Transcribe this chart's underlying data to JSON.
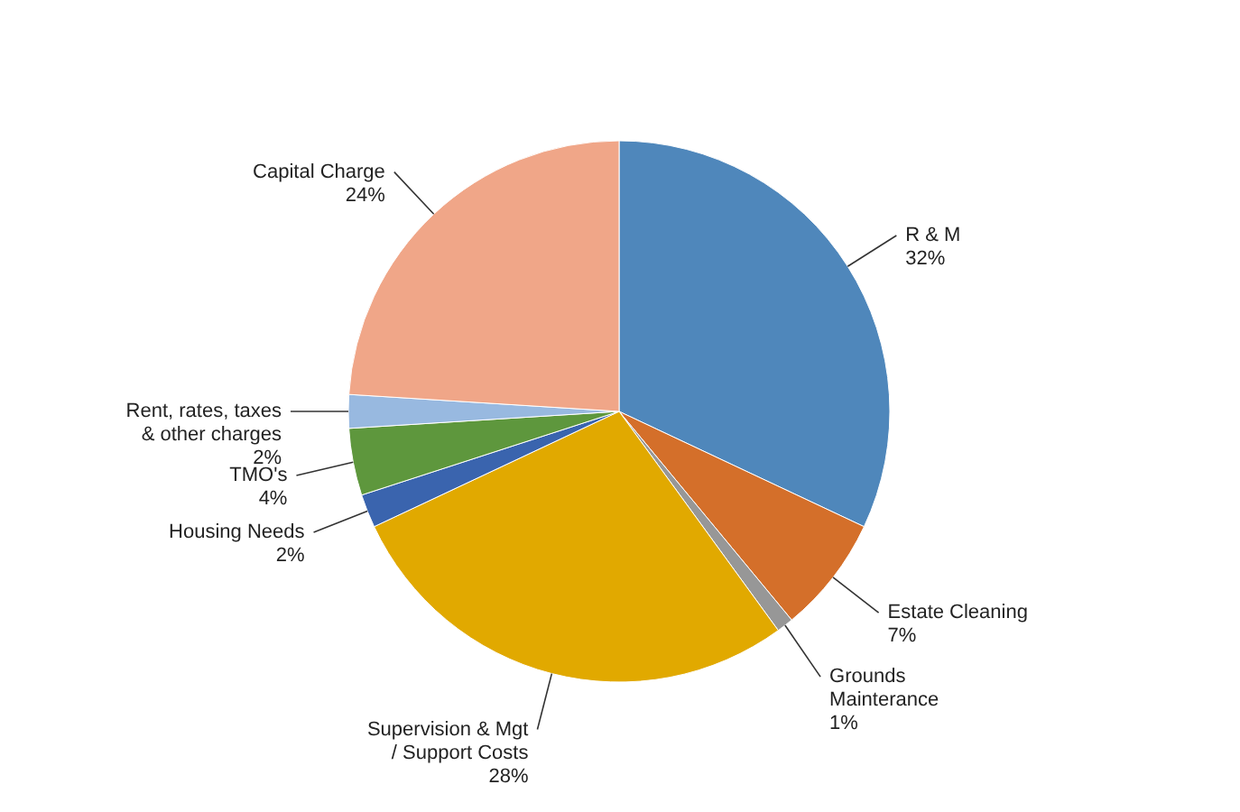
{
  "chart_data": {
    "type": "pie",
    "categories": [
      "R & M",
      "Estate Cleaning",
      "Grounds Mainterance",
      "Supervision & Mgt / Support Costs",
      "Housing Needs",
      "TMO's",
      "Rent, rates, taxes & other charges",
      "Capital Charge"
    ],
    "values": [
      32,
      7,
      1,
      28,
      2,
      4,
      2,
      24
    ],
    "value_labels": [
      "32%",
      "7%",
      "1%",
      "28%",
      "2%",
      "4%",
      "2%",
      "24%"
    ],
    "colors": [
      "#4f87bb",
      "#d46f2a",
      "#979797",
      "#e1a900",
      "#3a64ae",
      "#5e973d",
      "#98b9e0",
      "#f0a688"
    ]
  }
}
